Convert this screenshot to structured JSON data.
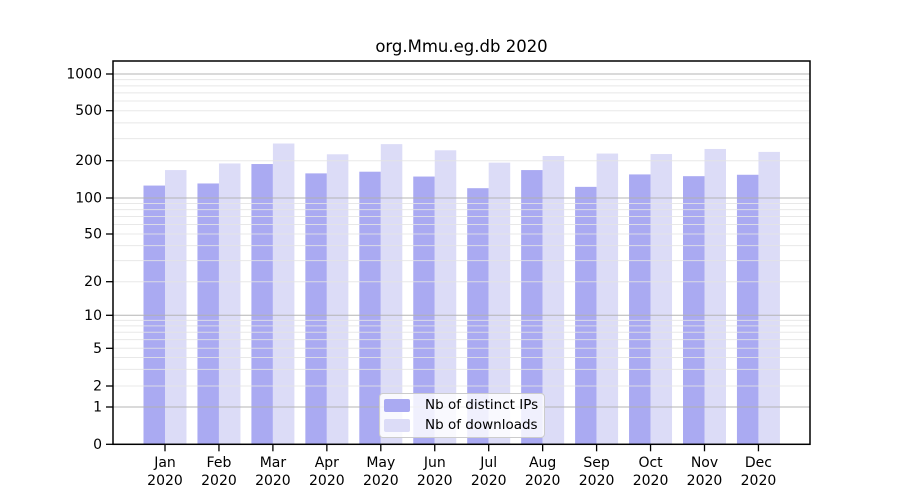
{
  "chart_data": {
    "type": "bar",
    "title": "org.Mmu.eg.db 2020",
    "categories": [
      "Jan 2020",
      "Feb 2020",
      "Mar 2020",
      "Apr 2020",
      "May 2020",
      "Jun 2020",
      "Jul 2020",
      "Aug 2020",
      "Sep 2020",
      "Oct 2020",
      "Nov 2020",
      "Dec 2020"
    ],
    "series": [
      {
        "name": "Nb of distinct IPs",
        "color": "#aaaaf2",
        "values": [
          126,
          131,
          188,
          158,
          163,
          149,
          120,
          168,
          123,
          155,
          150,
          154
        ]
      },
      {
        "name": "Nb of downloads",
        "color": "#dcdcf7",
        "values": [
          168,
          190,
          274,
          225,
          271,
          242,
          193,
          218,
          228,
          226,
          248,
          235
        ]
      }
    ],
    "xlabel": "",
    "ylabel": "",
    "yscale": "log-like (symlog)",
    "yticks": [
      0,
      1,
      2,
      5,
      10,
      20,
      50,
      100,
      200,
      500,
      1000
    ],
    "ytick_labels": [
      "0",
      "1",
      "2",
      "5",
      "10",
      "20",
      "50",
      "100",
      "200",
      "500",
      "1000"
    ],
    "ylim": [
      0,
      1270
    ],
    "grid": "on",
    "legend_position": "inside bottom-center"
  },
  "colors": {
    "background": "#ffffff",
    "axis": "#000000",
    "grid_major": "#b0b0b0",
    "grid_minor": "#e4e4e4",
    "text": "#000000",
    "legend_border": "#cccccc",
    "bars_distinct_ips": "#aaaaf2",
    "bars_downloads": "#dcdcf7"
  }
}
